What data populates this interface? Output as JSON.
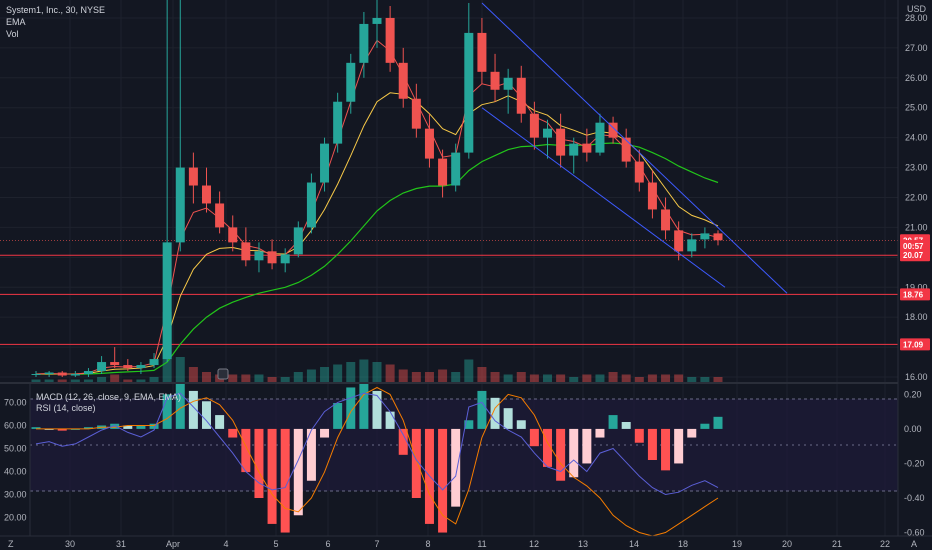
{
  "header": {
    "symbol_line": "System1, Inc., 30, NYSE",
    "indicator_1": "EMA",
    "indicator_2": "Vol",
    "currency": "USD"
  },
  "sub_panel": {
    "macd_label": "MACD (12, 26, close, 9, EMA, EMA)",
    "rsi_label": "RSI (14, close)"
  },
  "colors": {
    "background": "#131722",
    "up": "#26a69a",
    "down": "#ef5350",
    "ema_fast": "#ef5350",
    "ema_mid": "#f7c948",
    "ema_slow": "#22c51a",
    "channel": "#3d5afe",
    "level": "#f23645",
    "rsi": "#5b5fd6",
    "macd_signal": "#f57c00"
  },
  "chart_data": {
    "type": "candlestick",
    "price_axis": {
      "ticks": [
        "28.00",
        "27.00",
        "26.00",
        "25.00",
        "24.00",
        "23.00",
        "22.00",
        "21.00",
        "20.00",
        "19.00",
        "18.00",
        "17.00",
        "16.00"
      ],
      "range": [
        15.8,
        28.6
      ]
    },
    "time_axis": {
      "ticks": [
        "30",
        "31",
        "Apr",
        "4",
        "5",
        "6",
        "7",
        "8",
        "11",
        "12",
        "13",
        "14",
        "18",
        "19",
        "20",
        "21",
        "22"
      ]
    },
    "price_badges": [
      {
        "label": "20.57",
        "value": 20.57
      },
      {
        "label": "00:57",
        "value": 20.38
      },
      {
        "label": "20.07",
        "value": 20.07
      },
      {
        "label": "18.76",
        "value": 18.76
      },
      {
        "label": "17.09",
        "value": 17.09
      }
    ],
    "horizontal_levels": [
      20.07,
      18.76,
      17.09
    ],
    "channel_lines": [
      {
        "from": {
          "day": "11",
          "price": 28.5
        },
        "to": {
          "day": "20",
          "price": 18.8
        }
      },
      {
        "from": {
          "day": "11",
          "price": 25.0
        },
        "to": {
          "day": "18.5",
          "price": 19.0
        }
      }
    ],
    "candles": [
      {
        "o": 16.1,
        "h": 16.2,
        "l": 16.0,
        "c": 16.1
      },
      {
        "o": 16.1,
        "h": 16.2,
        "l": 16.0,
        "c": 16.15
      },
      {
        "o": 16.15,
        "h": 16.2,
        "l": 16.0,
        "c": 16.05
      },
      {
        "o": 16.05,
        "h": 16.2,
        "l": 16.0,
        "c": 16.1
      },
      {
        "o": 16.1,
        "h": 16.3,
        "l": 16.0,
        "c": 16.2
      },
      {
        "o": 16.2,
        "h": 16.7,
        "l": 16.1,
        "c": 16.5
      },
      {
        "o": 16.5,
        "h": 17.0,
        "l": 16.3,
        "c": 16.4
      },
      {
        "o": 16.4,
        "h": 16.6,
        "l": 16.2,
        "c": 16.3
      },
      {
        "o": 16.3,
        "h": 16.5,
        "l": 16.1,
        "c": 16.4
      },
      {
        "o": 16.4,
        "h": 16.8,
        "l": 16.3,
        "c": 16.6
      },
      {
        "o": 16.6,
        "h": 28.6,
        "l": 16.5,
        "c": 20.5
      },
      {
        "o": 20.5,
        "h": 28.6,
        "l": 20.2,
        "c": 23.0
      },
      {
        "o": 23.0,
        "h": 23.5,
        "l": 21.8,
        "c": 22.4
      },
      {
        "o": 22.4,
        "h": 23.0,
        "l": 21.5,
        "c": 21.8
      },
      {
        "o": 21.8,
        "h": 22.2,
        "l": 20.8,
        "c": 21.0
      },
      {
        "o": 21.0,
        "h": 21.4,
        "l": 20.2,
        "c": 20.5
      },
      {
        "o": 20.5,
        "h": 21.0,
        "l": 19.7,
        "c": 19.9
      },
      {
        "o": 19.9,
        "h": 20.5,
        "l": 19.5,
        "c": 20.2
      },
      {
        "o": 20.2,
        "h": 20.6,
        "l": 19.6,
        "c": 19.8
      },
      {
        "o": 19.8,
        "h": 20.3,
        "l": 19.5,
        "c": 20.1
      },
      {
        "o": 20.1,
        "h": 21.2,
        "l": 20.0,
        "c": 21.0
      },
      {
        "o": 21.0,
        "h": 22.8,
        "l": 20.8,
        "c": 22.5
      },
      {
        "o": 22.5,
        "h": 24.0,
        "l": 22.2,
        "c": 23.8
      },
      {
        "o": 23.8,
        "h": 25.5,
        "l": 23.5,
        "c": 25.2
      },
      {
        "o": 25.2,
        "h": 26.8,
        "l": 24.8,
        "c": 26.5
      },
      {
        "o": 26.5,
        "h": 28.2,
        "l": 26.0,
        "c": 27.8
      },
      {
        "o": 27.8,
        "h": 28.6,
        "l": 27.0,
        "c": 28.0
      },
      {
        "o": 28.0,
        "h": 28.4,
        "l": 26.2,
        "c": 26.5
      },
      {
        "o": 26.5,
        "h": 27.0,
        "l": 25.0,
        "c": 25.3
      },
      {
        "o": 25.3,
        "h": 25.8,
        "l": 24.0,
        "c": 24.3
      },
      {
        "o": 24.3,
        "h": 24.8,
        "l": 23.0,
        "c": 23.3
      },
      {
        "o": 23.3,
        "h": 23.6,
        "l": 22.0,
        "c": 22.4
      },
      {
        "o": 22.4,
        "h": 23.8,
        "l": 22.2,
        "c": 23.5
      },
      {
        "o": 23.5,
        "h": 28.5,
        "l": 23.3,
        "c": 27.5
      },
      {
        "o": 27.5,
        "h": 28.0,
        "l": 25.8,
        "c": 26.2
      },
      {
        "o": 26.2,
        "h": 26.8,
        "l": 25.2,
        "c": 25.6
      },
      {
        "o": 25.6,
        "h": 26.3,
        "l": 24.8,
        "c": 26.0
      },
      {
        "o": 26.0,
        "h": 26.4,
        "l": 24.5,
        "c": 24.8
      },
      {
        "o": 24.8,
        "h": 25.2,
        "l": 23.6,
        "c": 24.0
      },
      {
        "o": 24.0,
        "h": 24.6,
        "l": 23.3,
        "c": 24.3
      },
      {
        "o": 24.3,
        "h": 24.8,
        "l": 23.0,
        "c": 23.4
      },
      {
        "o": 23.4,
        "h": 24.0,
        "l": 22.8,
        "c": 23.8
      },
      {
        "o": 23.8,
        "h": 24.3,
        "l": 23.2,
        "c": 23.5
      },
      {
        "o": 23.5,
        "h": 24.8,
        "l": 23.4,
        "c": 24.5
      },
      {
        "o": 24.5,
        "h": 24.7,
        "l": 23.8,
        "c": 24.0
      },
      {
        "o": 24.0,
        "h": 24.3,
        "l": 23.0,
        "c": 23.2
      },
      {
        "o": 23.2,
        "h": 23.6,
        "l": 22.2,
        "c": 22.5
      },
      {
        "o": 22.5,
        "h": 22.9,
        "l": 21.3,
        "c": 21.6
      },
      {
        "o": 21.6,
        "h": 22.0,
        "l": 20.6,
        "c": 20.9
      },
      {
        "o": 20.9,
        "h": 21.2,
        "l": 19.9,
        "c": 20.2
      },
      {
        "o": 20.2,
        "h": 20.8,
        "l": 20.0,
        "c": 20.6
      },
      {
        "o": 20.6,
        "h": 21.0,
        "l": 20.3,
        "c": 20.8
      },
      {
        "o": 20.8,
        "h": 20.9,
        "l": 20.4,
        "c": 20.57
      }
    ],
    "volume": [
      1,
      1,
      1,
      1,
      1,
      2,
      3,
      1,
      1,
      2,
      28,
      10,
      6,
      4,
      3,
      3,
      3,
      3,
      2,
      2,
      4,
      5,
      6,
      7,
      8,
      9,
      8,
      7,
      5,
      4,
      4,
      5,
      4,
      9,
      6,
      4,
      3,
      4,
      3,
      3,
      3,
      2,
      3,
      3,
      4,
      3,
      2,
      3,
      3,
      3,
      2,
      2,
      2
    ],
    "ema_fast": [
      16.1,
      16.12,
      16.1,
      16.1,
      16.14,
      16.3,
      16.35,
      16.33,
      16.36,
      16.47,
      18.3,
      20.6,
      21.5,
      21.65,
      21.3,
      20.9,
      20.4,
      20.3,
      20.05,
      20.08,
      20.55,
      21.5,
      22.6,
      23.9,
      25.2,
      26.5,
      27.25,
      26.9,
      26.1,
      25.2,
      24.3,
      23.35,
      23.42,
      25.4,
      25.8,
      25.7,
      25.85,
      25.35,
      24.7,
      24.5,
      23.95,
      23.87,
      23.68,
      24.1,
      24.05,
      23.62,
      23.06,
      22.33,
      21.6,
      20.9,
      20.75,
      20.77,
      20.67
    ],
    "ema_mid": [
      16.1,
      16.1,
      16.1,
      16.1,
      16.12,
      16.2,
      16.26,
      16.27,
      16.3,
      16.38,
      17.3,
      18.7,
      19.6,
      20.1,
      20.3,
      20.33,
      20.23,
      20.22,
      20.12,
      20.11,
      20.35,
      20.9,
      21.6,
      22.45,
      23.4,
      24.4,
      25.2,
      25.5,
      25.45,
      25.2,
      24.8,
      24.3,
      24.1,
      24.8,
      25.1,
      25.2,
      25.4,
      25.2,
      24.9,
      24.75,
      24.4,
      24.25,
      24.08,
      24.2,
      24.15,
      23.9,
      23.5,
      22.9,
      22.3,
      21.7,
      21.4,
      21.25,
      21.05
    ],
    "ema_slow": [
      16.1,
      16.1,
      16.1,
      16.1,
      16.1,
      16.12,
      16.15,
      16.17,
      16.19,
      16.22,
      16.5,
      17.1,
      17.6,
      18.0,
      18.3,
      18.5,
      18.66,
      18.8,
      18.9,
      19.0,
      19.16,
      19.4,
      19.7,
      20.1,
      20.55,
      21.05,
      21.55,
      21.9,
      22.15,
      22.3,
      22.38,
      22.38,
      22.45,
      22.9,
      23.2,
      23.4,
      23.6,
      23.7,
      23.72,
      23.77,
      23.74,
      23.75,
      23.74,
      23.8,
      23.82,
      23.78,
      23.68,
      23.5,
      23.3,
      23.05,
      22.85,
      22.65,
      22.5
    ],
    "macd_axis": {
      "ticks": [
        "0.20",
        "0.00",
        "-0.20",
        "-0.40",
        "-0.60"
      ],
      "range": [
        -0.62,
        0.26
      ]
    },
    "rsi_axis": {
      "ticks": [
        "70.00",
        "60.00",
        "50.00",
        "40.00",
        "30.00",
        "20.00"
      ],
      "range": [
        12,
        78
      ]
    },
    "macd_hist": [
      0.01,
      0.0,
      -0.01,
      0.0,
      0.01,
      0.02,
      0.03,
      0.02,
      0.02,
      0.03,
      0.2,
      0.26,
      0.22,
      0.16,
      0.08,
      -0.05,
      -0.25,
      -0.4,
      -0.55,
      -0.6,
      -0.5,
      -0.3,
      -0.05,
      0.15,
      0.24,
      0.26,
      0.22,
      0.1,
      -0.15,
      -0.4,
      -0.55,
      -0.6,
      -0.45,
      0.05,
      0.22,
      0.18,
      0.12,
      0.05,
      -0.1,
      -0.22,
      -0.3,
      -0.28,
      -0.2,
      -0.05,
      0.08,
      0.04,
      -0.08,
      -0.18,
      -0.24,
      -0.2,
      -0.05,
      0.03,
      0.07
    ],
    "macd_signal": [
      0.0,
      0.0,
      0.0,
      0.0,
      0.0,
      0.01,
      0.01,
      0.02,
      0.02,
      0.02,
      0.06,
      0.12,
      0.16,
      0.18,
      0.14,
      0.05,
      -0.1,
      -0.25,
      -0.38,
      -0.46,
      -0.48,
      -0.4,
      -0.25,
      -0.05,
      0.1,
      0.2,
      0.24,
      0.2,
      0.05,
      -0.18,
      -0.38,
      -0.5,
      -0.55,
      -0.35,
      -0.05,
      0.12,
      0.2,
      0.18,
      0.08,
      -0.08,
      -0.2,
      -0.28,
      -0.33,
      -0.4,
      -0.5,
      -0.56,
      -0.6,
      -0.62,
      -0.6,
      -0.55,
      -0.5,
      -0.45,
      -0.4
    ],
    "rsi": [
      52,
      53,
      51,
      52,
      55,
      58,
      60,
      57,
      55,
      58,
      72,
      74,
      68,
      62,
      55,
      48,
      40,
      35,
      32,
      33,
      45,
      58,
      66,
      70,
      72,
      74,
      73,
      66,
      56,
      45,
      38,
      32,
      38,
      68,
      70,
      62,
      58,
      55,
      48,
      42,
      40,
      45,
      40,
      48,
      50,
      44,
      38,
      33,
      30,
      31,
      34,
      36,
      33
    ]
  }
}
